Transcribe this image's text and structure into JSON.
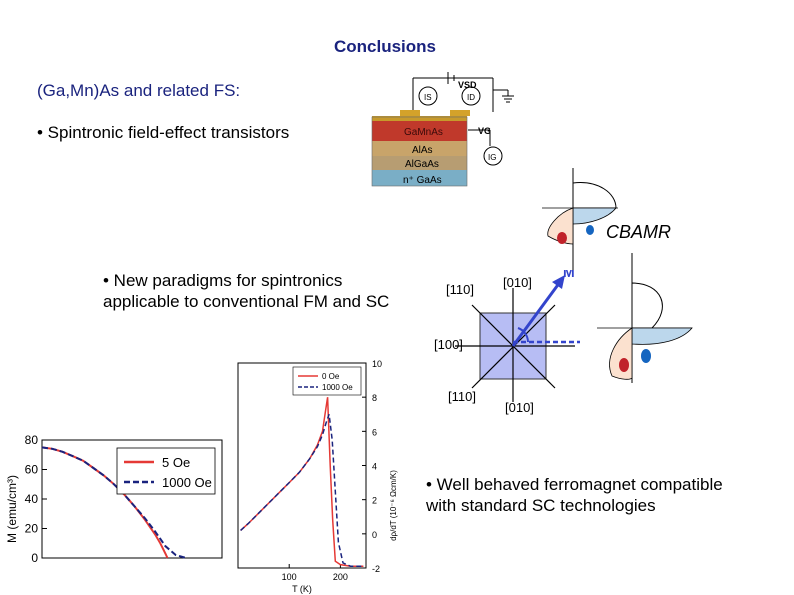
{
  "slide": {
    "title": "Conclusions",
    "subtitle": "(Ga,Mn)As and related FS:",
    "bullet1": "• Spintronic field-effect transistors",
    "bullet2_line1": "• New paradigms for spintronics",
    "bullet2_line2": "applicable to conventional FM and SC",
    "bullet3_line1": "• Well behaved ferromagnet compatible",
    "bullet3_line2": "with standard SC technologies"
  },
  "device": {
    "layers": [
      "GaMnAs",
      "AlAs",
      "AlGaAs",
      "n⁺ GaAs"
    ],
    "circuit_labels": {
      "is": "IS",
      "id": "ID",
      "vsd": "VSD",
      "vg": "VG",
      "ig": "IG"
    }
  },
  "cbamr": {
    "label": "CBAMR",
    "magnetization_label": "M",
    "directions": {
      "d110": "[110]",
      "d010": "[010]",
      "d100": "[100]",
      "d1m10": "[110]",
      "d0m10": "[010]"
    }
  },
  "chart_data": [
    {
      "type": "line",
      "title": "",
      "xlabel": "",
      "ylabel": "M (emu/cm³)",
      "ylim": [
        0,
        80
      ],
      "yticks": [
        "0",
        "20",
        "40",
        "60",
        "80"
      ],
      "series": [
        {
          "name": "5 Oe",
          "color": "#e53935",
          "x": [
            0,
            10,
            20,
            30,
            40,
            50,
            60,
            70,
            80,
            90,
            100,
            110,
            115,
            120,
            122
          ],
          "values": [
            75,
            74,
            72,
            69,
            66,
            61,
            56,
            50,
            43,
            35,
            26,
            16,
            10,
            3,
            0
          ]
        },
        {
          "name": "1000 Oe",
          "color": "#1a237e",
          "x": [
            0,
            10,
            20,
            30,
            40,
            50,
            60,
            70,
            80,
            90,
            100,
            110,
            115,
            120,
            125,
            130,
            140
          ],
          "values": [
            75,
            74,
            72,
            69,
            66,
            61,
            56,
            50,
            43,
            35,
            27,
            18,
            13,
            8,
            5,
            2,
            0
          ]
        }
      ]
    },
    {
      "type": "line",
      "title": "",
      "xlabel": "T (K)",
      "ylabel": "dρ/dT (10⁻⁶ Ωcm/K)",
      "xticks": [
        "100",
        "200"
      ],
      "yticks": [
        "-2",
        "0",
        "2",
        "4",
        "6",
        "8",
        "10"
      ],
      "xlim": [
        0,
        250
      ],
      "ylim": [
        -2,
        10
      ],
      "series": [
        {
          "name": "0 Oe",
          "color": "#e53935",
          "x": [
            5,
            20,
            40,
            60,
            80,
            100,
            120,
            140,
            155,
            165,
            170,
            175,
            180,
            185,
            190,
            200,
            220,
            245
          ],
          "values": [
            0.2,
            0.6,
            1.2,
            1.8,
            2.4,
            3.0,
            3.6,
            4.4,
            5.2,
            6.0,
            7.0,
            8.0,
            4.0,
            0.8,
            -1.6,
            -1.8,
            -1.9,
            -1.9
          ]
        },
        {
          "name": "1000 Oe",
          "color": "#1a237e",
          "x": [
            5,
            20,
            40,
            60,
            80,
            100,
            120,
            140,
            155,
            165,
            172,
            178,
            184,
            190,
            196,
            205,
            220,
            245
          ],
          "values": [
            0.2,
            0.6,
            1.2,
            1.8,
            2.4,
            3.0,
            3.6,
            4.4,
            5.1,
            5.8,
            6.5,
            7.0,
            5.5,
            2.5,
            -0.5,
            -1.7,
            -1.9,
            -1.9
          ]
        }
      ]
    }
  ]
}
